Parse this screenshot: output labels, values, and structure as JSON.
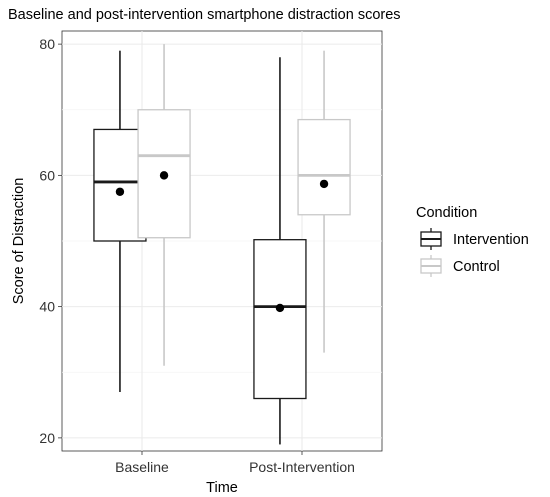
{
  "chart_data": {
    "type": "boxplot",
    "title": "Baseline and post-intervention smartphone distraction scores",
    "xlabel": "Time",
    "ylabel": "Score of Distraction",
    "categories": [
      "Baseline",
      "Post-Intervention"
    ],
    "yticks": [
      20,
      40,
      60,
      80
    ],
    "ylim": [
      18,
      82
    ],
    "grid": true,
    "legend": {
      "title": "Condition",
      "placement": "right",
      "entries": [
        "Intervention",
        "Control"
      ]
    },
    "series": [
      {
        "name": "Intervention",
        "color": "#1a1a1a",
        "boxes": [
          {
            "whisker_low": 27,
            "q1": 50,
            "median": 59,
            "q3": 67,
            "whisker_high": 79,
            "mean": 57.5
          },
          {
            "whisker_low": 19,
            "q1": 26,
            "median": 40,
            "q3": 50.2,
            "whisker_high": 78,
            "mean": 39.8
          }
        ]
      },
      {
        "name": "Control",
        "color": "#c8c8c8",
        "boxes": [
          {
            "whisker_low": 31,
            "q1": 50.5,
            "median": 63,
            "q3": 70,
            "whisker_high": 80,
            "mean": 60
          },
          {
            "whisker_low": 33,
            "q1": 54,
            "median": 60,
            "q3": 68.5,
            "whisker_high": 79,
            "mean": 58.7
          }
        ]
      }
    ]
  }
}
